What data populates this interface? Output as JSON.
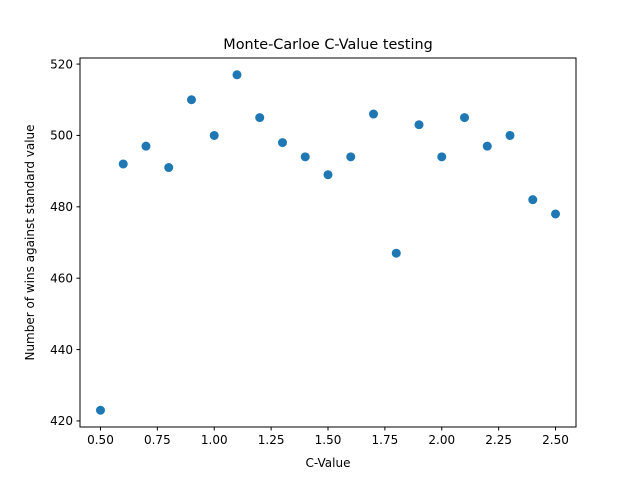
{
  "chart_data": {
    "type": "scatter",
    "title": "Monte-Carloe C-Value testing",
    "xlabel": "C-Value",
    "ylabel": "Number of wins against standard value",
    "xlim": [
      0.41,
      2.59
    ],
    "ylim": [
      418.3,
      521.7
    ],
    "x_ticks": [
      0.5,
      0.75,
      1.0,
      1.25,
      1.5,
      1.75,
      2.0,
      2.25,
      2.5
    ],
    "x_tick_labels": [
      "0.50",
      "0.75",
      "1.00",
      "1.25",
      "1.50",
      "1.75",
      "2.00",
      "2.25",
      "2.50"
    ],
    "y_ticks": [
      420,
      440,
      460,
      480,
      500,
      520
    ],
    "y_tick_labels": [
      "420",
      "440",
      "460",
      "480",
      "500",
      "520"
    ],
    "grid": false,
    "marker_color": "#1f77b4",
    "x": [
      0.5,
      0.6,
      0.7,
      0.8,
      0.9,
      1.0,
      1.1,
      1.2,
      1.3,
      1.4,
      1.5,
      1.6,
      1.7,
      1.8,
      1.9,
      2.0,
      2.1,
      2.2,
      2.3,
      2.4,
      2.5
    ],
    "y": [
      423,
      492,
      497,
      491,
      510,
      500,
      517,
      505,
      498,
      494,
      489,
      494,
      506,
      467,
      503,
      494,
      505,
      497,
      500,
      482,
      478
    ]
  }
}
